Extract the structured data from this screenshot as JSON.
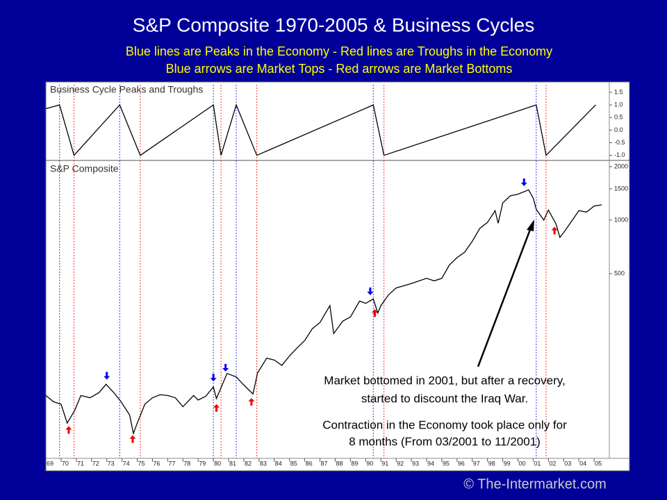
{
  "header": {
    "title": "S&P Composite 1970-2005 & Business Cycles",
    "subtitle": [
      "Blue lines are Peaks in the Economy - Red lines are Troughs in the Economy",
      "Blue arrows are Market Tops - Red arrows are Market Bottoms"
    ]
  },
  "chart_data": [
    {
      "type": "line",
      "title": "Business Cycle Peaks and Troughs",
      "color": "#000000",
      "x": [
        1969.0,
        1969.9,
        1970.85,
        1973.85,
        1975.2,
        1980.0,
        1980.5,
        1981.5,
        1982.85,
        1990.5,
        1991.2,
        2001.2,
        2001.85,
        2005.1
      ],
      "values": [
        0.85,
        1,
        -1,
        1,
        -1,
        1,
        -1,
        1,
        -1,
        1,
        -1,
        1,
        -1,
        1
      ],
      "peaks": [
        1969.9,
        1973.85,
        1980.0,
        1981.5,
        1990.5,
        2001.2
      ],
      "peak_color": "#3333ff",
      "troughs": [
        1970.85,
        1975.2,
        1980.5,
        1982.85,
        1991.2,
        2001.85
      ],
      "trough_color": "#ff3333",
      "xlim": [
        1969,
        2006
      ],
      "ylim": [
        -1.2,
        1.8
      ],
      "yticks": [
        1.5,
        {
          "value": 1,
          "label": "1.0"
        },
        0.5,
        {
          "value": 0,
          "label": "0.0"
        },
        -0.5,
        {
          "value": -1,
          "label": "-1.0"
        }
      ]
    },
    {
      "type": "line",
      "title": "S&P Composite",
      "color": "#000000",
      "log_scale": true,
      "x": [
        1969.0,
        1969.5,
        1970.0,
        1970.4,
        1970.9,
        1971.3,
        1971.9,
        1972.5,
        1972.95,
        1973.5,
        1973.9,
        1974.5,
        1974.75,
        1975.0,
        1975.5,
        1976.0,
        1976.5,
        1977.0,
        1977.5,
        1978.0,
        1978.7,
        1979.0,
        1979.5,
        1980.0,
        1980.2,
        1980.9,
        1981.5,
        1982.0,
        1982.6,
        1982.9,
        1983.5,
        1984.0,
        1984.5,
        1985.0,
        1985.5,
        1986.0,
        1986.5,
        1987.0,
        1987.65,
        1987.9,
        1988.5,
        1989.0,
        1989.6,
        1990.0,
        1990.5,
        1990.8,
        1991.0,
        1991.5,
        1992.0,
        1993.0,
        1994.0,
        1994.5,
        1995.0,
        1995.5,
        1996.0,
        1996.5,
        1997.0,
        1997.5,
        1998.0,
        1998.5,
        1998.7,
        1999.0,
        1999.5,
        2000.0,
        2000.7,
        2001.0,
        2001.2,
        2001.7,
        2002.0,
        2002.5,
        2002.75,
        2003.0,
        2003.5,
        2004.0,
        2004.5,
        2005.0,
        2005.5
      ],
      "values": [
        103,
        95,
        92,
        72,
        85,
        103,
        100,
        107,
        119,
        106,
        96,
        80,
        63,
        72,
        92,
        100,
        104,
        103,
        100,
        89,
        103,
        97,
        102,
        115,
        99,
        137,
        131,
        118,
        105,
        138,
        167,
        163,
        152,
        172,
        191,
        210,
        245,
        265,
        330,
        230,
        270,
        285,
        350,
        340,
        360,
        300,
        330,
        380,
        415,
        440,
        470,
        455,
        470,
        560,
        615,
        660,
        760,
        900,
        970,
        1130,
        960,
        1250,
        1370,
        1400,
        1480,
        1330,
        1150,
        1000,
        1140,
        950,
        800,
        850,
        980,
        1130,
        1110,
        1200,
        1220
      ],
      "market_tops": [
        1973.0,
        1980.0,
        1980.8,
        1990.3,
        2000.4
      ],
      "top_color": "#0000ee",
      "market_bottoms": [
        1970.5,
        1974.7,
        1980.2,
        1982.5,
        1990.6,
        2002.4
      ],
      "bottom_color": "#ee0000",
      "xlim": [
        1969,
        2006
      ],
      "ylim": [
        45.6,
        2168
      ],
      "yticks": [
        2000,
        1500,
        1000,
        500
      ],
      "xticks": [
        {
          "value": 1969,
          "label": "69"
        },
        {
          "value": 1970,
          "label": "70"
        },
        {
          "value": 1971,
          "label": "71"
        },
        {
          "value": 1972,
          "label": "72"
        },
        {
          "value": 1973,
          "label": "73"
        },
        {
          "value": 1974,
          "label": "74"
        },
        {
          "value": 1975,
          "label": "75"
        },
        {
          "value": 1976,
          "label": "76"
        },
        {
          "value": 1977,
          "label": "77"
        },
        {
          "value": 1978,
          "label": "78"
        },
        {
          "value": 1979,
          "label": "79"
        },
        {
          "value": 1980,
          "label": "80"
        },
        {
          "value": 1981,
          "label": "81"
        },
        {
          "value": 1982,
          "label": "82"
        },
        {
          "value": 1983,
          "label": "83"
        },
        {
          "value": 1984,
          "label": "84"
        },
        {
          "value": 1985,
          "label": "85"
        },
        {
          "value": 1986,
          "label": "86"
        },
        {
          "value": 1987,
          "label": "87"
        },
        {
          "value": 1988,
          "label": "88"
        },
        {
          "value": 1989,
          "label": "89"
        },
        {
          "value": 1990,
          "label": "90"
        },
        {
          "value": 1991,
          "label": "91"
        },
        {
          "value": 1992,
          "label": "92"
        },
        {
          "value": 1993,
          "label": "93"
        },
        {
          "value": 1994,
          "label": "94"
        },
        {
          "value": 1995,
          "label": "95"
        },
        {
          "value": 1996,
          "label": "96"
        },
        {
          "value": 1997,
          "label": "97"
        },
        {
          "value": 1998,
          "label": "98"
        },
        {
          "value": 1999,
          "label": "99"
        },
        {
          "value": 2000,
          "label": "00"
        },
        {
          "value": 2001,
          "label": "01"
        },
        {
          "value": 2002,
          "label": "02"
        },
        {
          "value": 2003,
          "label": "03"
        },
        {
          "value": 2004,
          "label": "04"
        },
        {
          "value": 2005,
          "label": "05"
        }
      ]
    }
  ],
  "annotations": [
    [
      "Market bottomed in 2001, but after a recovery,",
      "started to discount the Iraq War."
    ],
    [
      "Contraction in the Economy took place only for",
      "8 months (From 03/2001 to 11/2001)"
    ]
  ],
  "footer": "© The-Intermarket.com"
}
